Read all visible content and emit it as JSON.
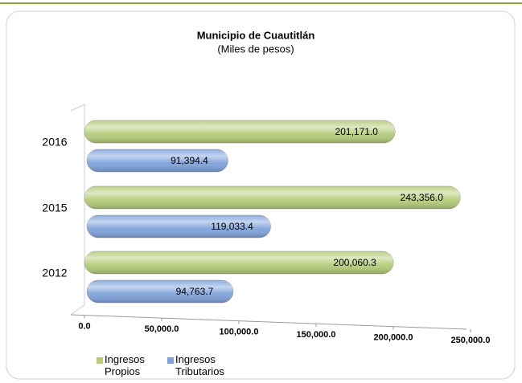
{
  "chart_data": {
    "type": "bar",
    "orientation": "horizontal",
    "title": "Municipio de Cuautitlán",
    "subtitle": "(Miles de pesos)",
    "categories": [
      "2016",
      "2015",
      "2012"
    ],
    "series": [
      {
        "name": "Ingresos Propios",
        "color": "#b5cc7a",
        "values": [
          201171.0,
          243356.0,
          200060.3
        ],
        "value_labels": [
          "201,171.0",
          "243,356.0",
          "200,060.3"
        ]
      },
      {
        "name": "Ingresos Tributarios",
        "color": "#7fa3db",
        "values": [
          91394.4,
          119033.4,
          94763.7
        ],
        "value_labels": [
          "91,394.4",
          "119,033.4",
          "94,763.7"
        ]
      }
    ],
    "xlim": [
      0,
      250000
    ],
    "xticks": [
      {
        "value": 0,
        "label": "0.0"
      },
      {
        "value": 50000,
        "label": "50,000.0"
      },
      {
        "value": 100000,
        "label": "100,000.0"
      },
      {
        "value": 150000,
        "label": "150,000.0"
      },
      {
        "value": 200000,
        "label": "200,000.0"
      },
      {
        "value": 250000,
        "label": "250,000.0"
      }
    ],
    "legend": "bottom-left"
  }
}
